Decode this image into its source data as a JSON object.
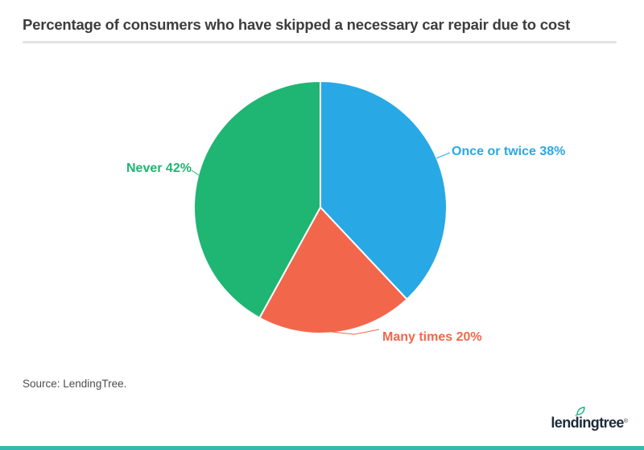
{
  "title": "Percentage of consumers who have skipped a necessary car repair due to cost",
  "source_note": "Source: LendingTree.",
  "logo": {
    "wordmark": "lendingtree",
    "registered_mark": "®"
  },
  "colors": {
    "background": "#FFFFFF",
    "title_text": "#3D3D3D",
    "divider": "#E3E3E3",
    "source_text": "#4D4D4D",
    "logo_text": "#1C2B3A",
    "logo_leaf": "#26B783",
    "footer_bar": "#35B8B0"
  },
  "chart_data": {
    "type": "pie",
    "title": "Percentage of consumers who have skipped a necessary car repair due to cost",
    "units": "%",
    "start_angle_deg": 0,
    "direction": "clockwise",
    "legend_position": "labels-outside",
    "slices": [
      {
        "label": "Once or twice",
        "value": 38,
        "display_label": "Once or twice 38%",
        "color": "#29A8E6"
      },
      {
        "label": "Many times",
        "value": 20,
        "display_label": "Many times 20%",
        "color": "#F2674C"
      },
      {
        "label": "Never",
        "value": 42,
        "display_label": "Never 42%",
        "color": "#1FB573"
      }
    ]
  }
}
